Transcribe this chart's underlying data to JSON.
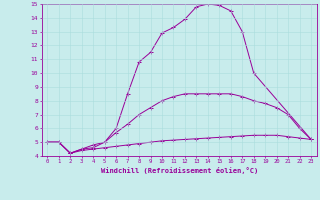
{
  "xlabel": "Windchill (Refroidissement éolien,°C)",
  "background_color": "#c8ecec",
  "line_color": "#990099",
  "xlim": [
    -0.5,
    23.5
  ],
  "ylim": [
    4,
    15
  ],
  "yticks": [
    4,
    5,
    6,
    7,
    8,
    9,
    10,
    11,
    12,
    13,
    14,
    15
  ],
  "xticks": [
    0,
    1,
    2,
    3,
    4,
    5,
    6,
    7,
    8,
    9,
    10,
    11,
    12,
    13,
    14,
    15,
    16,
    17,
    18,
    19,
    20,
    21,
    22,
    23
  ],
  "lines": [
    {
      "x": [
        0,
        1,
        2,
        3,
        4,
        5,
        6,
        7,
        8,
        9,
        10,
        11,
        12,
        13,
        14,
        15,
        16,
        17,
        18,
        23
      ],
      "y": [
        5.0,
        5.0,
        4.2,
        4.5,
        4.6,
        5.0,
        6.0,
        8.5,
        10.8,
        11.5,
        12.9,
        13.3,
        13.9,
        14.8,
        15.0,
        14.9,
        14.5,
        13.0,
        10.0,
        5.2
      ]
    },
    {
      "x": [
        0,
        1,
        2,
        3,
        4,
        5,
        6,
        7,
        8,
        9,
        10,
        11,
        12,
        13,
        14,
        15,
        16,
        17,
        18,
        19,
        20,
        21,
        22,
        23
      ],
      "y": [
        5.0,
        5.0,
        4.2,
        4.5,
        4.8,
        5.0,
        5.7,
        6.3,
        7.0,
        7.5,
        8.0,
        8.3,
        8.5,
        8.5,
        8.5,
        8.5,
        8.5,
        8.3,
        8.0,
        7.8,
        7.5,
        7.0,
        6.0,
        5.2
      ]
    },
    {
      "x": [
        0,
        1,
        2,
        3,
        4,
        5,
        6,
        7,
        8,
        9,
        10,
        11,
        12,
        13,
        14,
        15,
        16,
        17,
        18,
        19,
        20,
        21,
        22,
        23
      ],
      "y": [
        5.0,
        5.0,
        4.2,
        4.4,
        4.5,
        4.6,
        4.7,
        4.8,
        4.9,
        5.0,
        5.1,
        5.15,
        5.2,
        5.25,
        5.3,
        5.35,
        5.4,
        5.45,
        5.5,
        5.5,
        5.5,
        5.4,
        5.3,
        5.2
      ]
    }
  ]
}
